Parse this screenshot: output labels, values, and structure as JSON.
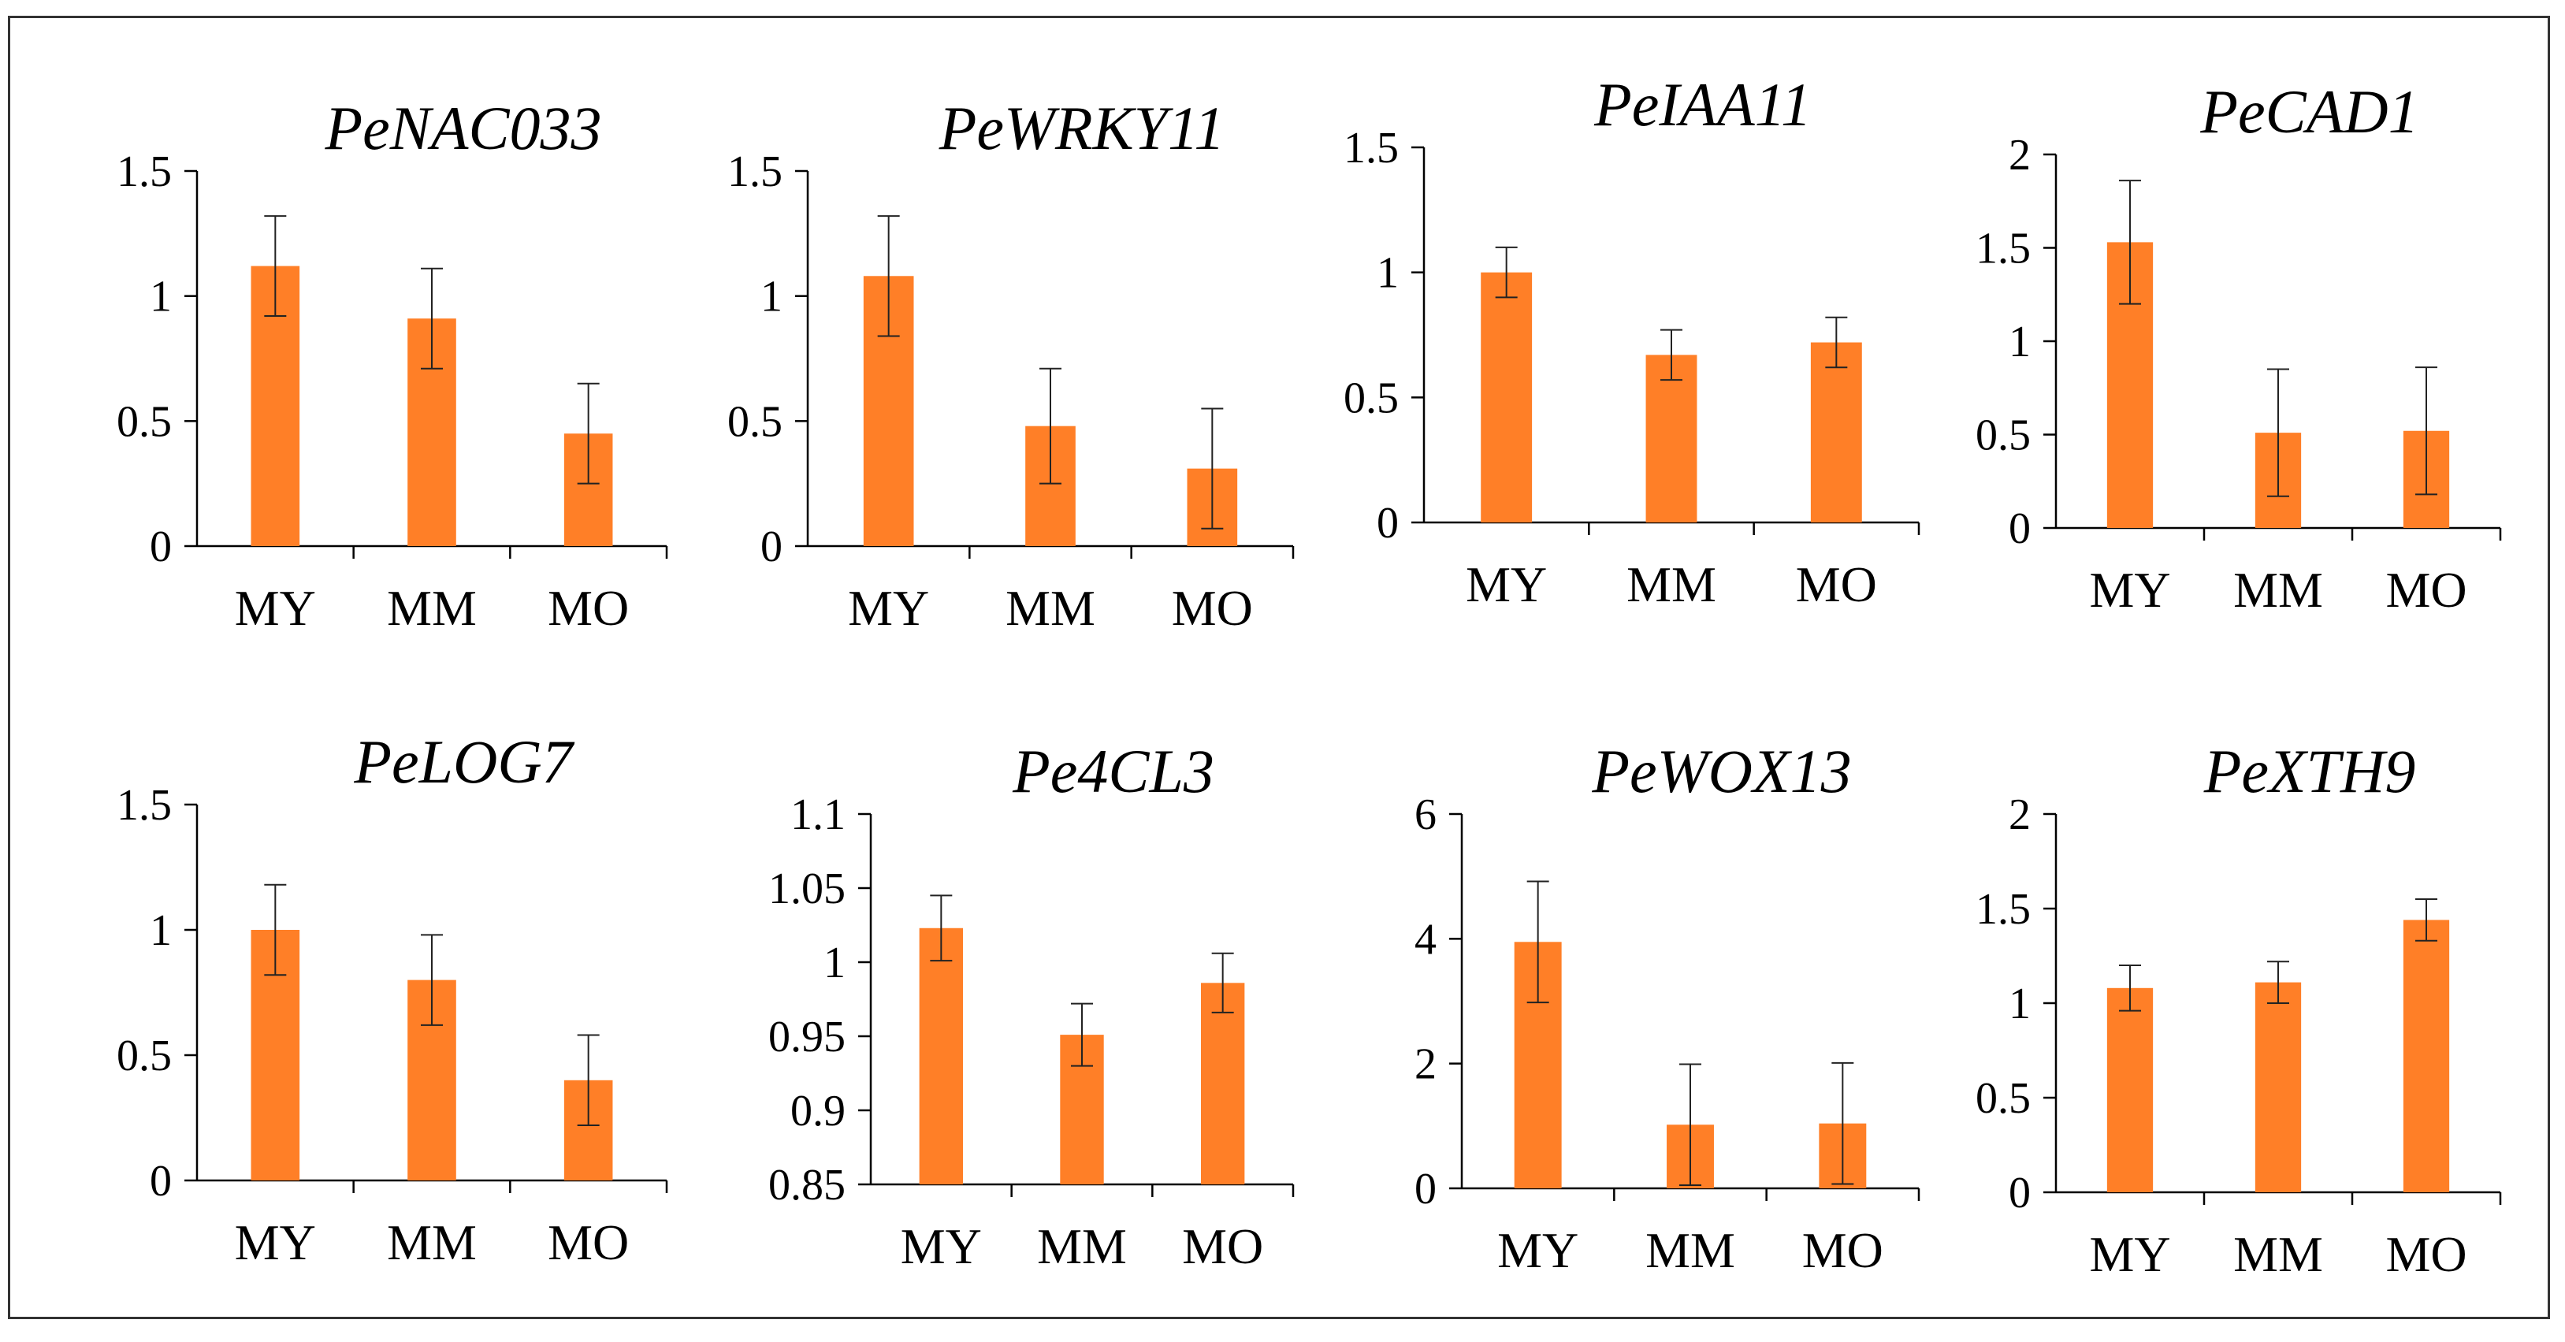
{
  "chart_data": [
    {
      "type": "bar",
      "title": "PeNAC033",
      "categories": [
        "MY",
        "MM",
        "MO"
      ],
      "values": [
        1.12,
        0.91,
        0.45
      ],
      "errors": [
        0.2,
        0.2,
        0.2
      ],
      "ylim": [
        0,
        1.5
      ],
      "yticks": [
        0,
        0.5,
        1,
        1.5
      ],
      "ytick_labels": [
        "0",
        "0.5",
        "1",
        "1.5"
      ],
      "color": "#FF7F27"
    },
    {
      "type": "bar",
      "title": "PeWRKY11",
      "categories": [
        "MY",
        "MM",
        "MO"
      ],
      "values": [
        1.08,
        0.48,
        0.31
      ],
      "errors": [
        0.24,
        0.23,
        0.24
      ],
      "ylim": [
        0,
        1.5
      ],
      "yticks": [
        0,
        0.5,
        1,
        1.5
      ],
      "ytick_labels": [
        "0",
        "0.5",
        "1",
        "1.5"
      ],
      "color": "#FF7F27"
    },
    {
      "type": "bar",
      "title": "PeIAA11",
      "categories": [
        "MY",
        "MM",
        "MO"
      ],
      "values": [
        1.0,
        0.67,
        0.72
      ],
      "errors": [
        0.1,
        0.1,
        0.1
      ],
      "ylim": [
        0,
        1.5
      ],
      "yticks": [
        0,
        0.5,
        1,
        1.5
      ],
      "ytick_labels": [
        "0",
        "0.5",
        "1",
        "1.5"
      ],
      "color": "#FF7F27"
    },
    {
      "type": "bar",
      "title": "PeCAD1",
      "categories": [
        "MY",
        "MM",
        "MO"
      ],
      "values": [
        1.53,
        0.51,
        0.52
      ],
      "errors": [
        0.33,
        0.34,
        0.34
      ],
      "ylim": [
        0,
        2
      ],
      "yticks": [
        0,
        0.5,
        1,
        1.5,
        2
      ],
      "ytick_labels": [
        "0",
        "0.5",
        "1",
        "1.5",
        "2"
      ],
      "color": "#FF7F27"
    },
    {
      "type": "bar",
      "title": "PeLOG7",
      "categories": [
        "MY",
        "MM",
        "MO"
      ],
      "values": [
        1.0,
        0.8,
        0.4
      ],
      "errors": [
        0.18,
        0.18,
        0.18
      ],
      "ylim": [
        0,
        1.5
      ],
      "yticks": [
        0,
        0.5,
        1,
        1.5
      ],
      "ytick_labels": [
        "0",
        "0.5",
        "1",
        "1.5"
      ],
      "color": "#FF7F27"
    },
    {
      "type": "bar",
      "title": "Pe4CL3",
      "categories": [
        "MY",
        "MM",
        "MO"
      ],
      "values": [
        1.023,
        0.951,
        0.986
      ],
      "errors": [
        0.022,
        0.021,
        0.02
      ],
      "ylim": [
        0.85,
        1.1
      ],
      "yticks": [
        0.85,
        0.9,
        0.95,
        1,
        1.05,
        1.1
      ],
      "ytick_labels": [
        "0.85",
        "0.9",
        "0.95",
        "1",
        "1.05",
        "1.1"
      ],
      "color": "#FF7F27"
    },
    {
      "type": "bar",
      "title": "PeWOX13",
      "categories": [
        "MY",
        "MM",
        "MO"
      ],
      "values": [
        3.95,
        1.02,
        1.04
      ],
      "errors": [
        0.97,
        0.97,
        0.97
      ],
      "ylim": [
        0,
        6
      ],
      "yticks": [
        0,
        2,
        4,
        6
      ],
      "ytick_labels": [
        "0",
        "2",
        "4",
        "6"
      ],
      "color": "#FF7F27"
    },
    {
      "type": "bar",
      "title": "PeXTH9",
      "categories": [
        "MY",
        "MM",
        "MO"
      ],
      "values": [
        1.08,
        1.11,
        1.44
      ],
      "errors": [
        0.12,
        0.11,
        0.11
      ],
      "ylim": [
        0,
        2
      ],
      "yticks": [
        0,
        0.5,
        1,
        1.5,
        2
      ],
      "ytick_labels": [
        "0",
        "0.5",
        "1",
        "1.5",
        "2"
      ],
      "color": "#FF7F27"
    }
  ]
}
